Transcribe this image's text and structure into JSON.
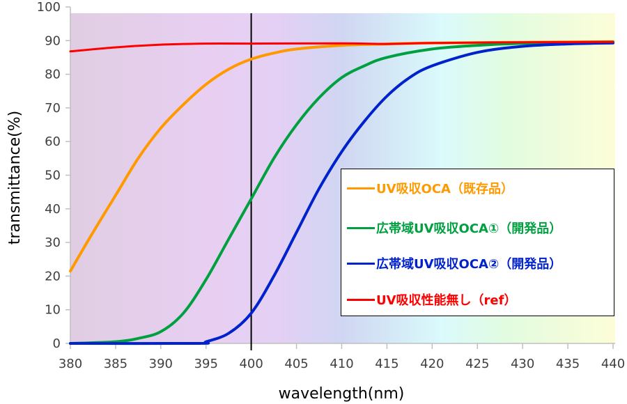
{
  "chart_data": {
    "type": "line",
    "title": "",
    "xlabel": "wavelength(nm)",
    "ylabel": "transmittance(%)",
    "xlim": [
      380,
      440
    ],
    "ylim": [
      0,
      100
    ],
    "x_ticks": [
      380,
      385,
      390,
      395,
      400,
      405,
      410,
      415,
      420,
      425,
      430,
      435,
      440
    ],
    "y_ticks": [
      0,
      10,
      20,
      30,
      40,
      50,
      60,
      70,
      80,
      90,
      100
    ],
    "grid": false,
    "legend_position": "lower right (inside plot)",
    "annotations": [
      {
        "type": "vertical-line",
        "x": 400,
        "color": "#000000"
      }
    ],
    "background": "visible-spectrum gradient (violet at 380nm to pale yellow at 440nm)",
    "series": [
      {
        "name": "UV吸収OCA（既存品）",
        "color": "#FF9900",
        "x": [
          380,
          382.5,
          385,
          387.5,
          390,
          392.5,
          395,
          397.5,
          400,
          402.5,
          405,
          410,
          415,
          420,
          430,
          440
        ],
        "values": [
          21.5,
          33,
          44,
          55,
          64,
          71,
          77,
          81.5,
          84.5,
          86.3,
          87.5,
          88.6,
          89.0,
          89.3,
          89.5,
          89.7
        ]
      },
      {
        "name": "広帯域UV吸収OCA①（開発品）",
        "color": "#00A040",
        "x": [
          380,
          385,
          387.5,
          390,
          392.5,
          395,
          397.5,
          400,
          402.5,
          405,
          407.5,
          410,
          412.5,
          415,
          420,
          425,
          430,
          440
        ],
        "values": [
          0,
          0.5,
          1.5,
          3.5,
          9,
          19,
          31,
          43,
          55,
          65,
          73,
          79,
          82.5,
          85,
          87.5,
          88.6,
          89.2,
          89.6
        ]
      },
      {
        "name": "広帯域UV吸収OCA②（開発品）",
        "color": "#0022CC",
        "x": [
          380,
          394,
          395,
          397.5,
          400,
          402.5,
          405,
          407.5,
          410,
          412.5,
          415,
          417.5,
          420,
          425,
          430,
          435,
          440
        ],
        "values": [
          0,
          0,
          0.5,
          3,
          9,
          20,
          33,
          46,
          57,
          66,
          73.5,
          79,
          82.5,
          86.5,
          88.3,
          89.0,
          89.3
        ]
      },
      {
        "name": "UV吸収性能無し（ref）",
        "color": "#FF0000",
        "x": [
          380,
          385,
          390,
          395,
          400,
          410,
          415,
          420,
          430,
          440
        ],
        "values": [
          86.8,
          88.0,
          88.8,
          89.1,
          89.1,
          89.2,
          89.0,
          89.3,
          89.5,
          89.6
        ]
      }
    ]
  },
  "legend": {
    "items": [
      {
        "label": "UV吸収OCA（既存品）",
        "color": "#FF9900"
      },
      {
        "label": "広帯域UV吸収OCA①（開発品）",
        "color": "#00A040"
      },
      {
        "label": "広帯域UV吸収OCA②（開発品）",
        "color": "#0022CC"
      },
      {
        "label": "UV吸収性能無し（ref）",
        "color": "#FF0000"
      }
    ]
  },
  "colors": {
    "axis": "#BFBFBF",
    "tick_text": "#404040",
    "marker_line": "#000000"
  }
}
